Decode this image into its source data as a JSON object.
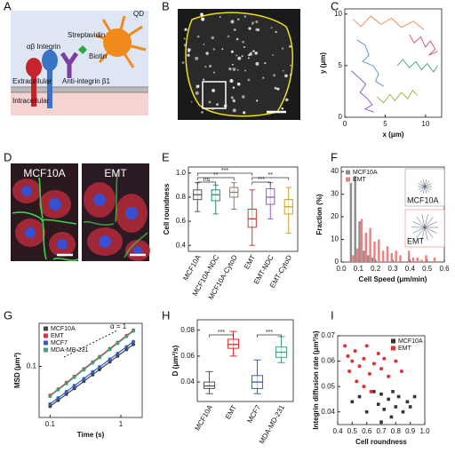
{
  "panel_letters": [
    "A",
    "B",
    "C",
    "D",
    "E",
    "F",
    "G",
    "H",
    "I"
  ],
  "diagram": {
    "qd": "QD",
    "streptavidin": "Streptavidin",
    "integrin": "αβ Integrin",
    "biotin": "Biotin",
    "extracellular": "Extracellular",
    "antibody": "Anti-integrin β1",
    "intracellular": "Intracellular"
  },
  "micrograph_labels": [
    "MCF10A",
    "EMT"
  ],
  "chart_data": [
    {
      "type": "line",
      "xlabel": "x (μm)",
      "ylabel": "y (μm)",
      "xlim": [
        0,
        12
      ],
      "ylim": [
        0,
        10.5
      ],
      "xticks": [
        0,
        5,
        10
      ],
      "yticks": [
        0,
        5,
        10
      ],
      "series": [
        {
          "color": "#e8732a",
          "x": [
            1,
            2,
            3.2,
            4.5,
            5.8,
            7,
            8.5,
            9.8
          ],
          "values": [
            9.5,
            8.8,
            9.8,
            9,
            9.6,
            8.7,
            9.3,
            8.5
          ]
        },
        {
          "color": "#3a7fd0",
          "x": [
            1.5,
            2.5,
            3,
            2.2,
            3.5,
            4.2,
            3.8,
            4.8
          ],
          "values": [
            7.5,
            7,
            6,
            5.4,
            5,
            4.2,
            3.5,
            3
          ]
        },
        {
          "color": "#7a3fb0",
          "x": [
            0.8,
            1.8,
            2.6,
            1.9,
            2.8,
            3.4,
            2.5,
            3.6
          ],
          "values": [
            4.5,
            3.8,
            3.2,
            2.4,
            1.8,
            1.2,
            0.8,
            0.5
          ]
        },
        {
          "color": "#2aa05a",
          "x": [
            6.5,
            7.2,
            8,
            8.8,
            9.5,
            10.2,
            11,
            11.5
          ],
          "values": [
            5,
            5.6,
            4.8,
            5.4,
            4.6,
            5.2,
            4.4,
            5
          ]
        },
        {
          "color": "#d03a6a",
          "x": [
            8,
            8.6,
            9.4,
            10,
            10.6,
            11.2,
            10.4,
            11.5
          ],
          "values": [
            8,
            7.2,
            7.8,
            6.8,
            7.4,
            6.6,
            6,
            6.4
          ]
        },
        {
          "color": "#9aa020",
          "x": [
            4,
            4.8,
            5.6,
            6.2,
            7,
            7.8,
            8.4,
            9
          ],
          "values": [
            2,
            1.4,
            2.2,
            1.6,
            2.4,
            1.8,
            2.6,
            2.1
          ]
        }
      ]
    },
    {
      "type": "box",
      "ylabel": "Cell roundness",
      "ylim": [
        0.35,
        1.05
      ],
      "yticks": [
        0.4,
        0.6,
        0.8,
        {
          "value": 1,
          "label": "1.0"
        }
      ],
      "categories": [
        "MCF10A",
        "MCF10A-NDC",
        "MCF10A-CytoD",
        "EMT",
        "EMT-NDC",
        "EMT-CytoD"
      ],
      "colors": [
        "#555555",
        "#2e8b7a",
        "#8a7a6a",
        "#d23a3a",
        "#8e5fb5",
        "#c9a227"
      ],
      "min": [
        0.68,
        0.66,
        0.7,
        0.4,
        0.62,
        0.5
      ],
      "q1": [
        0.78,
        0.77,
        0.8,
        0.55,
        0.74,
        0.66
      ],
      "median": [
        0.82,
        0.82,
        0.84,
        0.62,
        0.8,
        0.72
      ],
      "q3": [
        0.86,
        0.86,
        0.88,
        0.7,
        0.87,
        0.78
      ],
      "max": [
        0.92,
        0.9,
        0.92,
        0.86,
        0.92,
        0.88
      ],
      "brackets": [
        {
          "text": "ns",
          "between": [
            "MCF10A",
            "MCF10A-NDC"
          ]
        },
        {
          "text": "**",
          "between": [
            "MCF10A",
            "MCF10A-CytoD"
          ]
        },
        {
          "text": "***",
          "between": [
            "MCF10A",
            "EMT"
          ]
        },
        {
          "text": "***",
          "between": [
            "EMT",
            "EMT-NDC"
          ]
        },
        {
          "text": "**",
          "between": [
            "EMT",
            "EMT-CytoD"
          ]
        }
      ]
    },
    {
      "type": "histogram",
      "xlabel": "Cell Speed (μm/min)",
      "ylabel": "Fraction (%)",
      "xlim": [
        0,
        0.6
      ],
      "ylim": [
        0,
        42
      ],
      "xticks": [
        {
          "value": 0,
          "label": "0.0"
        },
        0.1,
        0.2,
        0.3,
        0.4,
        0.5,
        0.6
      ],
      "yticks": [
        0,
        10,
        20,
        30,
        40
      ],
      "legend": "top-left",
      "bins": [
        0.05,
        0.075,
        0.1,
        0.125,
        0.15,
        0.175,
        0.2,
        0.225,
        0.25,
        0.275,
        0.3,
        0.325,
        0.35,
        0.375,
        0.4,
        0.425,
        0.45,
        0.475,
        0.5,
        0.525,
        0.55
      ],
      "series": [
        {
          "name": "MCF10A",
          "color": "#8c8c8c",
          "values": [
            35,
            38,
            18,
            5,
            3,
            2,
            0,
            0,
            0,
            0,
            0,
            0,
            0,
            0,
            0,
            0,
            0,
            0,
            0,
            0
          ]
        },
        {
          "name": "EMT",
          "color": "#f08080",
          "values": [
            3,
            6,
            19,
            13,
            15,
            9,
            10,
            5,
            7,
            4,
            5,
            3,
            0,
            5,
            2,
            2,
            1,
            3,
            0,
            2
          ]
        }
      ],
      "insets": [
        "MCF10A",
        "EMT"
      ]
    },
    {
      "type": "line",
      "xlabel": "Time (s)",
      "ylabel": "MSD (μm²)",
      "xscale": "log",
      "yscale": "log",
      "xlim": [
        0.07,
        2
      ],
      "ylim": [
        0.012,
        0.6
      ],
      "xticks": [
        0.1,
        1
      ],
      "yticks": [
        0.1
      ],
      "legend": "top-left",
      "markers": true,
      "annotation": "α = 1",
      "x": [
        0.1,
        0.13,
        0.17,
        0.22,
        0.3,
        0.4,
        0.5,
        0.7,
        0.9,
        1.2,
        1.5
      ],
      "series": [
        {
          "name": "MCF10A",
          "color": "#444444",
          "values": [
            0.019,
            0.0245,
            0.0316,
            0.04,
            0.054,
            0.071,
            0.088,
            0.121,
            0.154,
            0.202,
            0.25
          ]
        },
        {
          "name": "EMT",
          "color": "#e03030",
          "values": [
            0.03,
            0.039,
            0.051,
            0.066,
            0.09,
            0.12,
            0.15,
            0.21,
            0.27,
            0.36,
            0.45
          ]
        },
        {
          "name": "MCF7",
          "color": "#3060c0",
          "values": [
            0.021,
            0.027,
            0.035,
            0.045,
            0.06,
            0.08,
            0.098,
            0.135,
            0.172,
            0.226,
            0.28
          ]
        },
        {
          "name": "MDA-MB-231",
          "color": "#40a080",
          "values": [
            0.029,
            0.038,
            0.049,
            0.064,
            0.087,
            0.116,
            0.145,
            0.203,
            0.261,
            0.348,
            0.435
          ]
        }
      ]
    },
    {
      "type": "box",
      "ylabel": "D (μm²/s)",
      "ylim": [
        0.025,
        0.088
      ],
      "yticks": [
        0.04,
        0.06,
        0.08
      ],
      "categories": [
        "MCF10A",
        "EMT",
        "MCF7",
        "MDA-MD-231"
      ],
      "colors": [
        "#555555",
        "#e03030",
        "#3060c0",
        "#40a080"
      ],
      "min": [
        0.031,
        0.06,
        0.031,
        0.055
      ],
      "q1": [
        0.035,
        0.066,
        0.035,
        0.059
      ],
      "median": [
        0.037,
        0.069,
        0.04,
        0.063
      ],
      "q3": [
        0.04,
        0.073,
        0.045,
        0.067
      ],
      "max": [
        0.048,
        0.079,
        0.057,
        0.075
      ],
      "brackets": [
        {
          "text": "***",
          "between": [
            "MCF10A",
            "EMT"
          ]
        },
        {
          "text": "***",
          "between": [
            "MCF7",
            "MDA-MD-231"
          ]
        }
      ]
    },
    {
      "type": "scatter",
      "xlabel": "Cell roundness",
      "ylabel": "Integrin diffusion rate (μm²/s)",
      "xlim": [
        0.4,
        1.0
      ],
      "ylim": [
        0.035,
        0.07
      ],
      "xticks": [
        0.4,
        0.5,
        0.6,
        0.7,
        0.8,
        0.9,
        {
          "value": 1,
          "label": "1.0"
        }
      ],
      "yticks": [
        0.04,
        0.05,
        0.06,
        0.07
      ],
      "legend": "top-right",
      "series": [
        {
          "name": "MCF10A",
          "color": "#333333",
          "marker": "square",
          "x": [
            0.5,
            0.55,
            0.6,
            0.65,
            0.68,
            0.7,
            0.72,
            0.75,
            0.78,
            0.8,
            0.82,
            0.85,
            0.88,
            0.9,
            0.93,
            0.77,
            0.7
          ],
          "values": [
            0.044,
            0.046,
            0.04,
            0.048,
            0.043,
            0.047,
            0.041,
            0.045,
            0.048,
            0.042,
            0.046,
            0.04,
            0.044,
            0.042,
            0.046,
            0.038,
            0.036
          ]
        },
        {
          "name": "EMT",
          "color": "#e03030",
          "marker": "circle",
          "x": [
            0.47,
            0.5,
            0.52,
            0.55,
            0.58,
            0.6,
            0.62,
            0.65,
            0.48,
            0.53,
            0.68,
            0.7,
            0.72,
            0.75,
            0.8,
            0.84,
            0.58,
            0.63,
            0.45
          ],
          "values": [
            0.062,
            0.06,
            0.064,
            0.058,
            0.061,
            0.066,
            0.055,
            0.059,
            0.056,
            0.052,
            0.063,
            0.057,
            0.061,
            0.054,
            0.06,
            0.056,
            0.05,
            0.048,
            0.066
          ]
        }
      ]
    }
  ]
}
